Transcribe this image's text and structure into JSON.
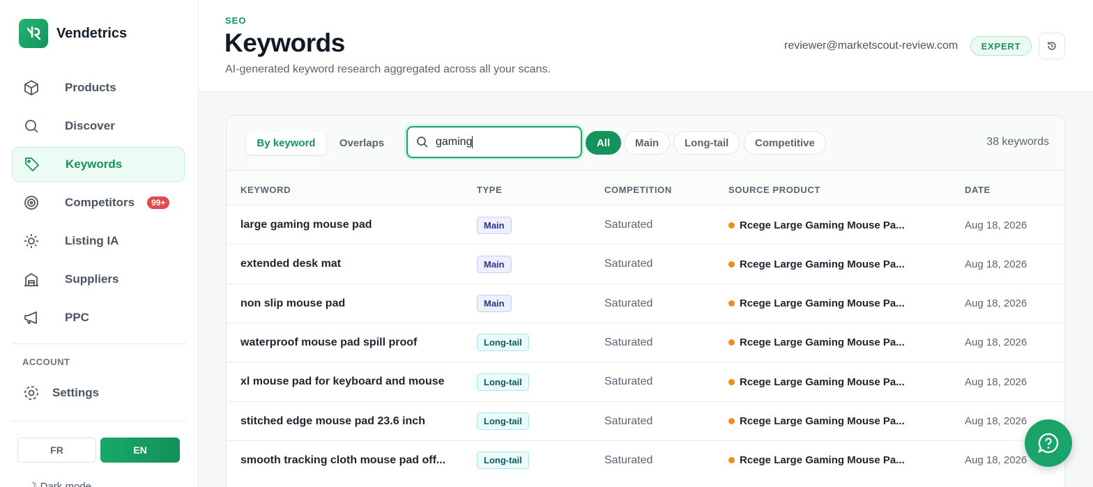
{
  "sidebar": {
    "brand": "Vendetrics",
    "nav": [
      "Products",
      "Discover",
      "Keywords",
      "Competitors",
      "Listing IA",
      "Suppliers",
      "PPC"
    ],
    "competitors_badge": "99+",
    "account_section": "ACCOUNT",
    "settings": "Settings",
    "languages": [
      "FR",
      "EN"
    ],
    "dark_mode": "Dark mode"
  },
  "header": {
    "eyebrow": "SEO",
    "title": "Keywords",
    "subtitle": "AI-generated keyword research aggregated across all your scans.",
    "email": "reviewer@marketscout-review.com",
    "plan": "EXPERT"
  },
  "toolbar": {
    "views": [
      "By keyword",
      "Overlaps"
    ],
    "search": "gaming",
    "filters": [
      "All",
      "Main",
      "Long-tail",
      "Competitive"
    ],
    "count": "38 keywords"
  },
  "table": {
    "columns": [
      "KEYWORD",
      "TYPE",
      "COMPETITION",
      "SOURCE PRODUCT",
      "DATE"
    ],
    "rows": [
      [
        "large gaming mouse pad",
        "Main",
        "Saturated",
        "Rcege Large Gaming Mouse Pa...",
        "Aug 18, 2026"
      ],
      [
        "extended desk mat",
        "Main",
        "Saturated",
        "Rcege Large Gaming Mouse Pa...",
        "Aug 18, 2026"
      ],
      [
        "non slip mouse pad",
        "Main",
        "Saturated",
        "Rcege Large Gaming Mouse Pa...",
        "Aug 18, 2026"
      ],
      [
        "waterproof mouse pad spill proof",
        "Long-tail",
        "Saturated",
        "Rcege Large Gaming Mouse Pa...",
        "Aug 18, 2026"
      ],
      [
        "xl mouse pad for keyboard and mouse",
        "Long-tail",
        "Saturated",
        "Rcege Large Gaming Mouse Pa...",
        "Aug 18, 2026"
      ],
      [
        "stitched edge mouse pad 23.6 inch",
        "Long-tail",
        "Saturated",
        "Rcege Large Gaming Mouse Pa...",
        "Aug 18, 2026"
      ],
      [
        "smooth tracking cloth mouse pad off...",
        "Long-tail",
        "Saturated",
        "Rcege Large Gaming Mouse Pa...",
        "Aug 18, 2026"
      ]
    ]
  }
}
